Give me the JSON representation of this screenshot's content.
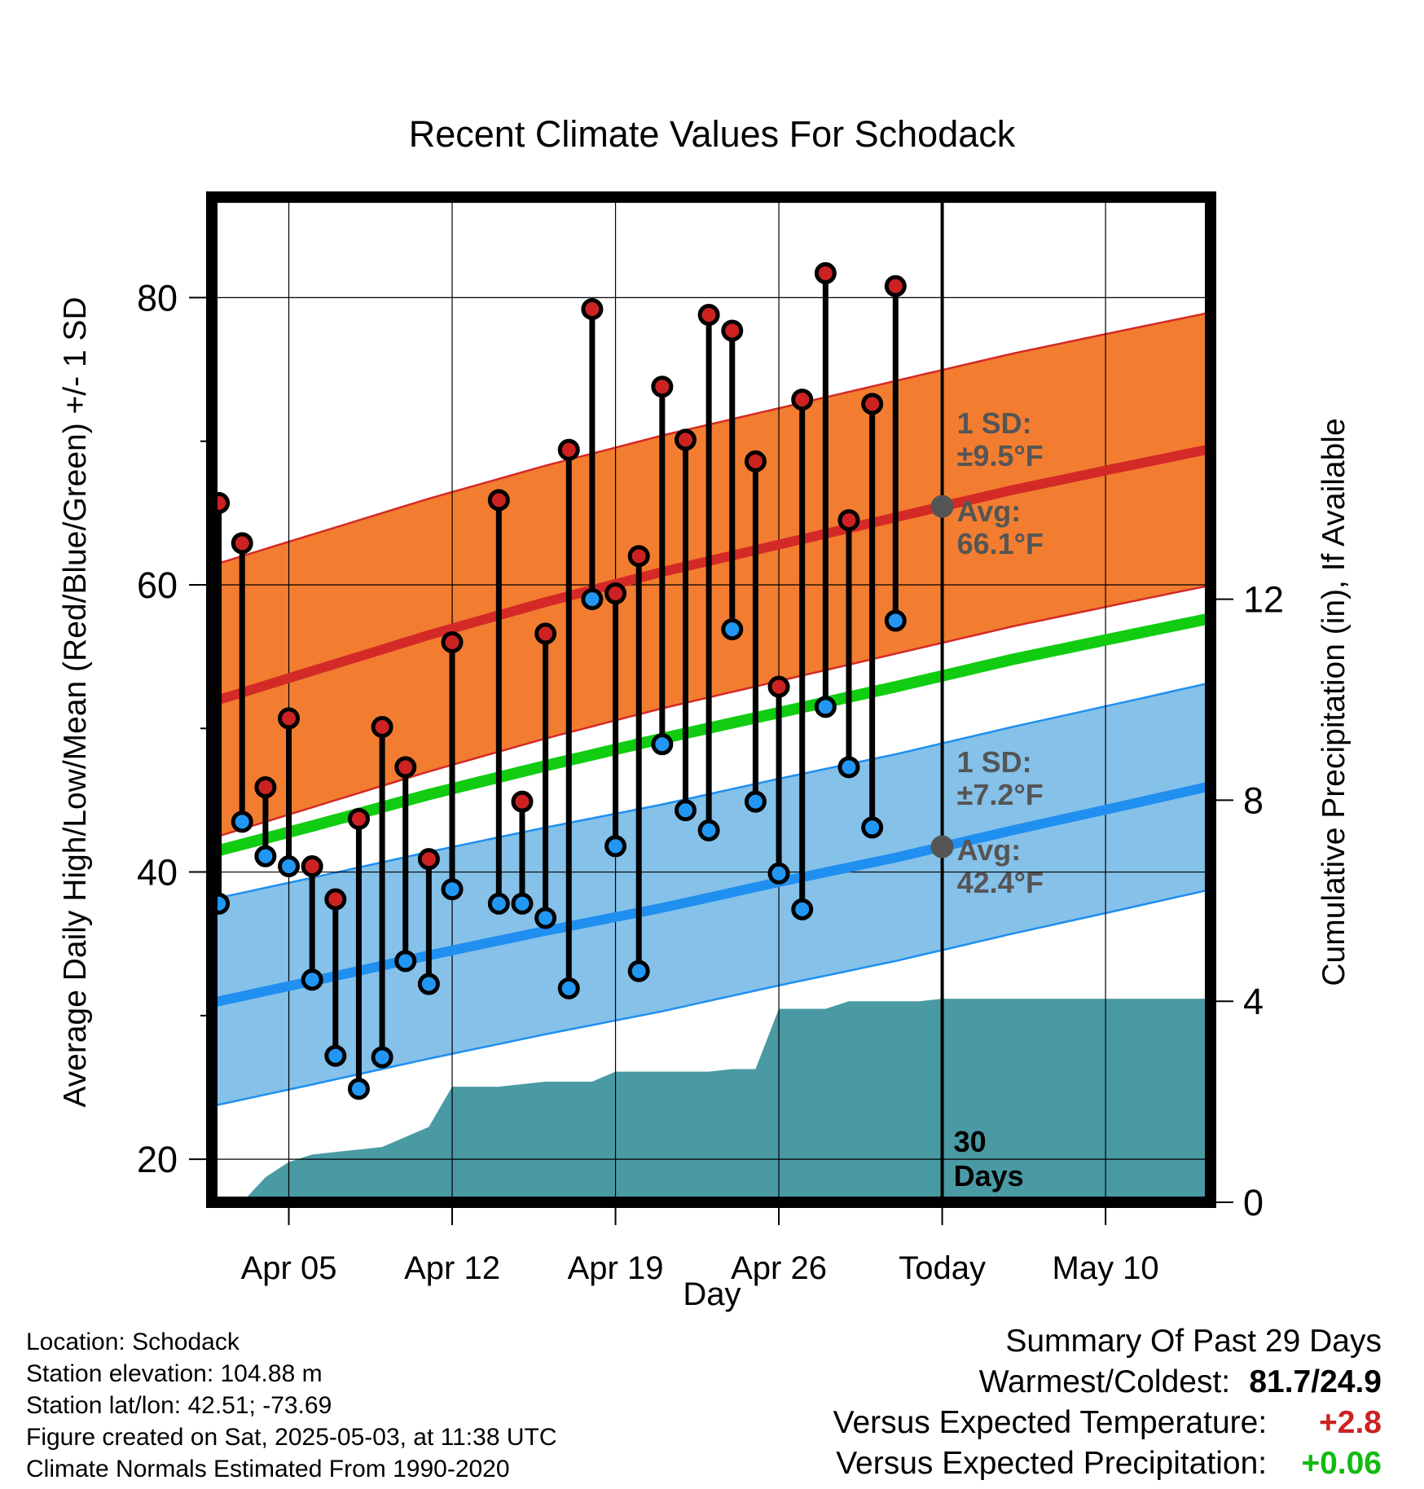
{
  "chart_data": {
    "type": "line",
    "title": "Recent Climate Values For Schodack",
    "xlabel": "Day",
    "ylabel": "Average Daily High/Low/Mean (Red/Blue/Green) +/- 1 SD",
    "y2label": "Cumulative Precipitation (in), If Available",
    "x_ticks": [
      {
        "day": 4,
        "label": "Apr 05"
      },
      {
        "day": 11,
        "label": "Apr 12"
      },
      {
        "day": 18,
        "label": "Apr 19"
      },
      {
        "day": 25,
        "label": "Apr 26"
      },
      {
        "day": 32,
        "label": "Today"
      },
      {
        "day": 39,
        "label": "May 10"
      }
    ],
    "xlim": [
      0.7,
      43.5
    ],
    "ylim": [
      17,
      87
    ],
    "y_ticks": [
      20,
      40,
      60,
      80
    ],
    "y_minor_ticks": [
      30,
      50,
      70
    ],
    "y2lim": [
      0,
      20
    ],
    "y2_ticks": [
      0,
      4,
      8,
      12
    ],
    "grid": true,
    "today_day": 32,
    "today_label": [
      "30",
      "Days"
    ],
    "normals": {
      "high_avg": {
        "x": [
          1,
          5,
          10,
          15,
          20,
          25,
          30,
          35,
          40,
          43
        ],
        "y": [
          52.0,
          54.0,
          56.5,
          58.8,
          60.9,
          62.8,
          64.7,
          66.6,
          68.3,
          69.3
        ]
      },
      "high_sd": 9.5,
      "low_avg": {
        "x": [
          1,
          5,
          10,
          15,
          20,
          25,
          30,
          35,
          40,
          43
        ],
        "y": [
          31.0,
          32.4,
          34.2,
          35.9,
          37.5,
          39.3,
          41.0,
          42.9,
          44.7,
          45.8
        ]
      },
      "low_sd": 7.2,
      "mean_avg": {
        "x": [
          1,
          5,
          10,
          15,
          20,
          25,
          30,
          35,
          40,
          43
        ],
        "y": [
          41.5,
          43.2,
          45.4,
          47.4,
          49.3,
          51.1,
          52.9,
          54.8,
          56.5,
          57.5
        ]
      }
    },
    "daily": {
      "day": [
        1,
        2,
        3,
        4,
        5,
        6,
        7,
        8,
        9,
        10,
        11,
        12,
        13,
        14,
        15,
        16,
        17,
        18,
        19,
        20,
        21,
        22,
        23,
        24,
        25,
        26,
        27,
        28,
        29,
        30,
        31
      ],
      "high": [
        65.7,
        62.9,
        45.9,
        50.7,
        40.4,
        38.1,
        43.7,
        50.1,
        47.3,
        40.9,
        56.0,
        null,
        65.9,
        44.9,
        56.6,
        69.4,
        79.2,
        59.4,
        62.0,
        73.8,
        70.1,
        78.8,
        77.7,
        68.6,
        52.9,
        72.9,
        81.7,
        64.5,
        72.6,
        80.8,
        null
      ],
      "low": [
        37.8,
        43.5,
        41.1,
        40.4,
        32.5,
        27.2,
        24.9,
        27.1,
        33.8,
        32.2,
        38.8,
        null,
        37.8,
        37.8,
        36.8,
        31.9,
        59.0,
        41.8,
        33.1,
        48.9,
        44.3,
        42.9,
        56.9,
        44.9,
        39.9,
        37.4,
        51.5,
        47.3,
        43.1,
        57.5,
        null
      ]
    },
    "precip": {
      "x": [
        0.7,
        2.0,
        3.0,
        4.0,
        5.0,
        6.0,
        7.0,
        8.0,
        9.0,
        10.0,
        11.0,
        12.0,
        13.0,
        14.0,
        15.0,
        16.0,
        17.0,
        18.0,
        19.0,
        20.0,
        21.0,
        22.0,
        23.0,
        24.0,
        25.0,
        26.0,
        27.0,
        28.0,
        29.0,
        30.0,
        31.0,
        32.0,
        43.5
      ],
      "y": [
        0.0,
        0.0,
        0.5,
        0.8,
        0.95,
        1.0,
        1.05,
        1.1,
        1.3,
        1.5,
        2.3,
        2.3,
        2.3,
        2.35,
        2.4,
        2.4,
        2.4,
        2.6,
        2.6,
        2.6,
        2.6,
        2.6,
        2.65,
        2.65,
        3.85,
        3.85,
        3.85,
        4.0,
        4.0,
        4.0,
        4.0,
        4.05,
        4.05
      ]
    },
    "annotations": {
      "high_sd": [
        "1 SD:",
        "±9.5°F"
      ],
      "high_avg": [
        "Avg:",
        "66.1°F"
      ],
      "low_sd": [
        "1 SD:",
        "±7.2°F"
      ],
      "low_avg": [
        "Avg:",
        "42.4°F"
      ]
    },
    "colors": {
      "high_band": "#f27d30",
      "high_line": "#d42a27",
      "low_band": "#85c1e9",
      "low_line": "#1f8ff0",
      "mean_line": "#11cc11",
      "precip": "#4a9aa4",
      "high_marker": "#cc2222",
      "low_marker": "#2196f3",
      "annotation": "#555555"
    }
  },
  "info_left": [
    "Location: Schodack",
    "Station elevation: 104.88 m",
    "Station lat/lon: 42.51; -73.69",
    "Figure created on Sat, 2025-05-03, at 11:38 UTC",
    "Climate Normals Estimated From 1990-2020"
  ],
  "summary": {
    "title": "Summary Of Past 29 Days",
    "warmest_label": "Warmest/Coldest:",
    "warmest_value": "81.7/24.9",
    "temp_label": "Versus Expected Temperature:",
    "temp_value": "+2.8",
    "temp_color": "#cc2222",
    "precip_label": "Versus Expected Precipitation:",
    "precip_value": "+0.06",
    "precip_color": "#11bb11"
  }
}
